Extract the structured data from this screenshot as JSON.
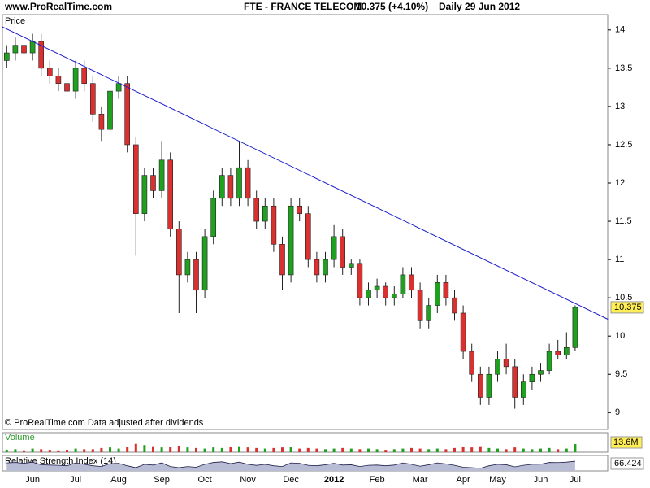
{
  "header": {
    "site": "www.ProRealTime.com",
    "symbol": "FTE - FRANCE TELECOM",
    "quote": "10.375 (+4.10%)",
    "period": "Daily  29 Jun 2012"
  },
  "chart_data": [
    {
      "type": "candlestick",
      "title": "Price",
      "note": "© ProRealTime.com  Data adjusted after dividends",
      "categories": [
        null,
        null,
        null,
        "Jun",
        null,
        null,
        null,
        null,
        "Jul",
        null,
        null,
        null,
        null,
        "Aug",
        null,
        null,
        null,
        null,
        "Sep",
        null,
        null,
        null,
        null,
        "Oct",
        null,
        null,
        null,
        null,
        "Nov",
        null,
        null,
        null,
        null,
        "Dec",
        null,
        null,
        null,
        null,
        "2012",
        null,
        null,
        null,
        null,
        "Feb",
        null,
        null,
        null,
        null,
        "Mar",
        null,
        null,
        null,
        null,
        "Apr",
        null,
        null,
        null,
        "May",
        null,
        null,
        null,
        null,
        "Jun",
        null,
        null,
        null,
        "Jul"
      ],
      "open": [
        13.6,
        13.7,
        13.8,
        13.7,
        13.85,
        13.5,
        13.4,
        13.3,
        13.2,
        13.5,
        13.3,
        12.9,
        12.7,
        13.2,
        13.3,
        12.5,
        11.6,
        12.1,
        11.9,
        12.3,
        11.4,
        10.8,
        11.0,
        10.6,
        11.3,
        11.8,
        12.1,
        11.8,
        12.2,
        11.8,
        11.5,
        11.7,
        11.2,
        10.8,
        11.7,
        11.6,
        11.0,
        10.8,
        11.0,
        11.3,
        10.9,
        10.95,
        10.5,
        10.6,
        10.65,
        10.5,
        10.55,
        10.8,
        10.6,
        10.2,
        10.4,
        10.7,
        10.5,
        10.3,
        9.8,
        9.5,
        9.2,
        9.5,
        9.7,
        9.6,
        9.2,
        9.4,
        9.5,
        9.55,
        9.8,
        9.75,
        9.85
      ],
      "high": [
        13.8,
        13.9,
        13.9,
        13.95,
        13.95,
        13.6,
        13.5,
        13.4,
        13.6,
        13.6,
        13.4,
        13.0,
        13.3,
        13.4,
        13.4,
        12.6,
        12.2,
        12.2,
        12.55,
        12.4,
        11.5,
        11.1,
        11.1,
        11.4,
        11.9,
        12.2,
        12.2,
        12.55,
        12.3,
        11.9,
        11.8,
        11.8,
        11.3,
        11.8,
        11.8,
        11.7,
        11.1,
        11.1,
        11.45,
        11.4,
        11.0,
        11.0,
        10.7,
        10.75,
        10.7,
        10.65,
        10.9,
        10.9,
        10.7,
        10.5,
        10.8,
        10.8,
        10.6,
        10.4,
        9.9,
        9.6,
        9.6,
        9.8,
        9.9,
        9.7,
        9.5,
        9.6,
        9.65,
        9.9,
        9.95,
        10.05,
        10.4
      ],
      "low": [
        13.5,
        13.6,
        13.6,
        13.6,
        13.4,
        13.3,
        13.2,
        13.1,
        13.1,
        13.2,
        12.8,
        12.55,
        12.6,
        13.1,
        12.4,
        11.05,
        11.5,
        11.8,
        11.8,
        11.3,
        10.3,
        10.7,
        10.3,
        10.5,
        11.2,
        11.7,
        11.7,
        11.7,
        11.7,
        11.4,
        11.4,
        11.1,
        10.6,
        10.7,
        11.5,
        10.9,
        10.7,
        10.7,
        10.9,
        10.8,
        10.8,
        10.4,
        10.4,
        10.5,
        10.4,
        10.4,
        10.5,
        10.5,
        10.1,
        10.1,
        10.3,
        10.4,
        10.2,
        9.7,
        9.4,
        9.1,
        9.1,
        9.4,
        9.5,
        9.05,
        9.1,
        9.3,
        9.4,
        9.5,
        9.7,
        9.7,
        9.8
      ],
      "close": [
        13.7,
        13.8,
        13.7,
        13.85,
        13.5,
        13.4,
        13.3,
        13.2,
        13.5,
        13.3,
        12.9,
        12.7,
        13.2,
        13.3,
        12.5,
        11.6,
        12.1,
        11.9,
        12.3,
        11.4,
        10.8,
        11.0,
        10.6,
        11.3,
        11.8,
        12.1,
        11.8,
        12.2,
        11.8,
        11.5,
        11.7,
        11.2,
        10.8,
        11.7,
        11.6,
        11.0,
        10.8,
        11.0,
        11.3,
        10.9,
        10.95,
        10.5,
        10.6,
        10.65,
        10.5,
        10.55,
        10.8,
        10.6,
        10.2,
        10.4,
        10.7,
        10.5,
        10.3,
        9.8,
        9.5,
        9.2,
        9.5,
        9.7,
        9.6,
        9.2,
        9.4,
        9.5,
        9.55,
        9.8,
        9.75,
        9.85,
        10.375
      ],
      "up_color": "#1fa01f",
      "down_color": "#d93030",
      "ylim": [
        8.78,
        14.2
      ],
      "yticks": [
        9,
        9.5,
        10,
        10.5,
        11,
        11.5,
        12,
        12.5,
        13,
        13.5,
        14
      ],
      "trendline": {
        "x": [
          -0.5,
          69.8
        ],
        "y": [
          14.04,
          10.22
        ],
        "color": "#1a1acc"
      }
    },
    {
      "type": "bar",
      "title": "Volume",
      "values": [
        4,
        5,
        3,
        6,
        5,
        4,
        3,
        4,
        6,
        5,
        5,
        7,
        8,
        6,
        9,
        14,
        12,
        10,
        8,
        9,
        11,
        8,
        7,
        6,
        8,
        7,
        9,
        10,
        8,
        7,
        6,
        7,
        8,
        9,
        6,
        7,
        6,
        5,
        6,
        7,
        6,
        5,
        6,
        5,
        4,
        5,
        6,
        7,
        6,
        5,
        6,
        5,
        7,
        9,
        8,
        10,
        7,
        6,
        5,
        8,
        6,
        5,
        6,
        7,
        5,
        6,
        13.6
      ],
      "value_labels": [
        null,
        null,
        null,
        null,
        null,
        null,
        null,
        null,
        null,
        null,
        null,
        null,
        null,
        null,
        null,
        null,
        null,
        null,
        null,
        null,
        null,
        null,
        null,
        null,
        null,
        null,
        null,
        null,
        null,
        null,
        null,
        null,
        null,
        null,
        null,
        null,
        null,
        null,
        null,
        null,
        null,
        null,
        null,
        null,
        null,
        null,
        null,
        null,
        null,
        null,
        null,
        null,
        null,
        null,
        null,
        null,
        null,
        null,
        null,
        null,
        null,
        null,
        null,
        null,
        null,
        null,
        "13.6M"
      ],
      "ylim": [
        0,
        30
      ]
    },
    {
      "type": "area",
      "title": "Relative Strength Index (14)",
      "color": "#b8bcd4",
      "line_color": "#20204a",
      "values": [
        55,
        58,
        52,
        60,
        42,
        40,
        38,
        35,
        55,
        45,
        35,
        30,
        50,
        52,
        35,
        22,
        45,
        40,
        55,
        30,
        22,
        30,
        25,
        45,
        58,
        62,
        50,
        60,
        45,
        38,
        45,
        35,
        30,
        55,
        52,
        38,
        35,
        42,
        52,
        40,
        42,
        30,
        38,
        40,
        35,
        40,
        55,
        45,
        32,
        42,
        55,
        48,
        38,
        25,
        22,
        18,
        35,
        45,
        42,
        28,
        38,
        45,
        46,
        58,
        57,
        60,
        66.424
      ],
      "ylim": [
        0,
        100
      ]
    }
  ]
}
